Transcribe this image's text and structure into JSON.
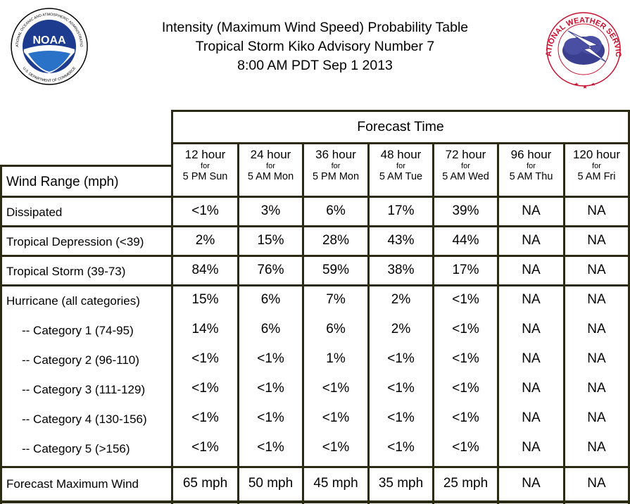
{
  "header": {
    "title_line1": "Intensity (Maximum Wind Speed) Probability Table",
    "title_line2": "Tropical Storm Kiko Advisory Number 7",
    "title_line3": "8:00 AM PDT Sep 1 2013"
  },
  "logos": {
    "noaa_text": "NOAA",
    "noaa_ring": "NATIONAL OCEANIC AND ATMOSPHERIC ADMINISTRATION",
    "noaa_ring_bottom": "U.S. DEPARTMENT OF COMMERCE",
    "nws_ring": "NATIONAL WEATHER SERVICE"
  },
  "table": {
    "forecast_time_label": "Forecast Time",
    "wind_range_label": "Wind Range (mph)",
    "columns": [
      {
        "hour": "12 hour",
        "for": "for",
        "date": "5 PM Sun"
      },
      {
        "hour": "24 hour",
        "for": "for",
        "date": "5 AM Mon"
      },
      {
        "hour": "36 hour",
        "for": "for",
        "date": "5 PM Mon"
      },
      {
        "hour": "48 hour",
        "for": "for",
        "date": "5 AM Tue"
      },
      {
        "hour": "72 hour",
        "for": "for",
        "date": "5 AM Wed"
      },
      {
        "hour": "96 hour",
        "for": "for",
        "date": "5 AM Thu"
      },
      {
        "hour": "120 hour",
        "for": "for",
        "date": "5 AM Fri"
      }
    ],
    "rows": [
      {
        "label": "Dissipated",
        "values": [
          "<1%",
          "3%",
          "6%",
          "17%",
          "39%",
          "NA",
          "NA"
        ]
      },
      {
        "label": "Tropical Depression (<39)",
        "values": [
          "2%",
          "15%",
          "28%",
          "43%",
          "44%",
          "NA",
          "NA"
        ]
      },
      {
        "label": "Tropical Storm (39-73)",
        "values": [
          "84%",
          "76%",
          "59%",
          "38%",
          "17%",
          "NA",
          "NA"
        ]
      },
      {
        "label": "Hurricane (all categories)",
        "values": [
          "15%",
          "6%",
          "7%",
          "2%",
          "<1%",
          "NA",
          "NA"
        ]
      },
      {
        "label": "-- Category 1 (74-95)",
        "values": [
          "14%",
          "6%",
          "6%",
          "2%",
          "<1%",
          "NA",
          "NA"
        ]
      },
      {
        "label": "-- Category 2 (96-110)",
        "values": [
          "<1%",
          "<1%",
          "1%",
          "<1%",
          "<1%",
          "NA",
          "NA"
        ]
      },
      {
        "label": "-- Category 3 (111-129)",
        "values": [
          "<1%",
          "<1%",
          "<1%",
          "<1%",
          "<1%",
          "NA",
          "NA"
        ]
      },
      {
        "label": "-- Category 4 (130-156)",
        "values": [
          "<1%",
          "<1%",
          "<1%",
          "<1%",
          "<1%",
          "NA",
          "NA"
        ]
      },
      {
        "label": "-- Category 5 (>156)",
        "values": [
          "<1%",
          "<1%",
          "<1%",
          "<1%",
          "<1%",
          "NA",
          "NA"
        ]
      }
    ],
    "max_wind": {
      "label": "Forecast Maximum Wind",
      "values": [
        "65 mph",
        "50 mph",
        "45 mph",
        "35 mph",
        "25 mph",
        "NA",
        "NA"
      ]
    }
  },
  "colors": {
    "grid": "#2b2b14",
    "noaa_blue": "#1d3c8f",
    "nws_red": "#c8102e"
  }
}
